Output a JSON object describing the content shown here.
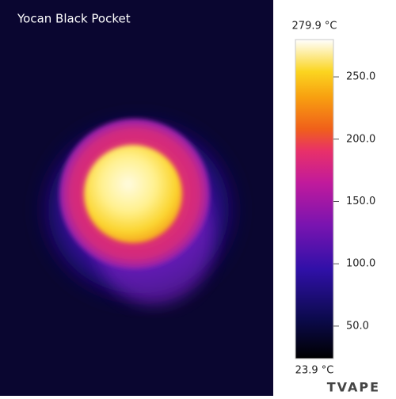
{
  "title": "Yocan Black Pocket",
  "colorbar": {
    "range": [
      {
        "value": 23.9,
        "label": "23.9 °C"
      },
      {
        "value": 279.9,
        "label": "279.9 °C"
      }
    ],
    "ticks": [
      {
        "value": 250,
        "label": "250.0"
      },
      {
        "value": 200,
        "label": "200.0"
      },
      {
        "value": 150,
        "label": "150.0"
      },
      {
        "value": 100,
        "label": "100.0"
      },
      {
        "value": 50,
        "label": "50.0"
      }
    ]
  },
  "watermark": "TVAPE"
}
